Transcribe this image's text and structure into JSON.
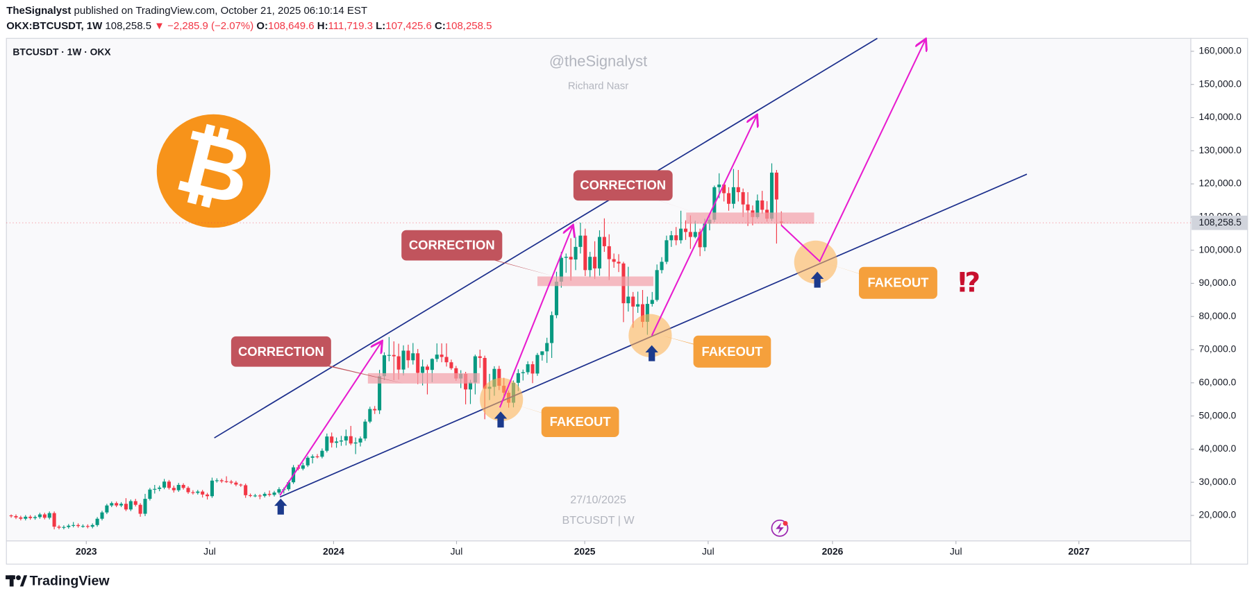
{
  "header": {
    "author": "TheSignalyst",
    "published": "published on TradingView.com, October 21, 2025 06:10:14 EST",
    "symbol": "OKX:BTCUSDT, 1W",
    "last": "108,258.5",
    "change": "−2,285.9 (−2.07%)",
    "ohlc": [
      {
        "label": "O:",
        "value": "108,649.6"
      },
      {
        "label": "H:",
        "value": "111,719.3"
      },
      {
        "label": "L:",
        "value": "107,425.6"
      },
      {
        "label": "C:",
        "value": "108,258.5"
      }
    ]
  },
  "chart_data": {
    "type": "candlestick",
    "legend": "BTCUSDT · 1W · OKX",
    "watermark": {
      "handle": "@theSignalyst",
      "name": "Richard Nasr",
      "date": "27/10/2025",
      "symbol": "BTCUSDT | W"
    },
    "colors": {
      "up": "#089981",
      "down": "#f23645"
    },
    "candles": [
      [
        20000,
        20300,
        19300,
        19800
      ],
      [
        19800,
        20300,
        18900,
        19400
      ],
      [
        19400,
        19900,
        18500,
        19000
      ],
      [
        19000,
        20100,
        18500,
        19600
      ],
      [
        19600,
        20100,
        18700,
        19200
      ],
      [
        19200,
        20000,
        18700,
        19500
      ],
      [
        19500,
        20800,
        19000,
        20300
      ],
      [
        20300,
        20800,
        18800,
        19300
      ],
      [
        19300,
        21200,
        18800,
        20700
      ],
      [
        20700,
        21200,
        15800,
        16600
      ],
      [
        16600,
        17100,
        15800,
        16300
      ],
      [
        16300,
        17000,
        15800,
        16500
      ],
      [
        16500,
        17400,
        16000,
        16900
      ],
      [
        16900,
        18000,
        16400,
        17100
      ],
      [
        17100,
        17600,
        16300,
        16800
      ],
      [
        16800,
        17300,
        16300,
        16800
      ],
      [
        16800,
        17300,
        16100,
        16600
      ],
      [
        16600,
        17600,
        16100,
        17100
      ],
      [
        17100,
        19500,
        16600,
        19000
      ],
      [
        19000,
        21400,
        18500,
        20900
      ],
      [
        20900,
        23500,
        20400,
        23000
      ],
      [
        23000,
        24200,
        22500,
        23700
      ],
      [
        23700,
        24200,
        22500,
        23000
      ],
      [
        23000,
        24000,
        22500,
        23500
      ],
      [
        23500,
        25200,
        21300,
        21800
      ],
      [
        21800,
        24800,
        21300,
        24300
      ],
      [
        24300,
        25000,
        22700,
        23200
      ],
      [
        23200,
        23700,
        19600,
        20500
      ],
      [
        20500,
        26500,
        19800,
        25000
      ],
      [
        25000,
        28300,
        24500,
        27800
      ],
      [
        27800,
        29200,
        26600,
        28000
      ],
      [
        28000,
        29000,
        27300,
        28400
      ],
      [
        28400,
        31000,
        27900,
        30200
      ],
      [
        30200,
        30700,
        27800,
        28300
      ],
      [
        28300,
        29000,
        26900,
        27600
      ],
      [
        27600,
        29800,
        27100,
        29200
      ],
      [
        29200,
        29700,
        27800,
        28300
      ],
      [
        28300,
        28800,
        26500,
        27000
      ],
      [
        27000,
        27600,
        26300,
        26800
      ],
      [
        26800,
        27700,
        26300,
        27200
      ],
      [
        27200,
        27700,
        25400,
        26300
      ],
      [
        26300,
        26800,
        24800,
        25800
      ],
      [
        25800,
        31400,
        25300,
        30500
      ],
      [
        30500,
        31200,
        29900,
        30600
      ],
      [
        30600,
        31100,
        29800,
        30300
      ],
      [
        30300,
        31800,
        29800,
        30200
      ],
      [
        30200,
        30700,
        29400,
        29900
      ],
      [
        29900,
        30400,
        28800,
        29300
      ],
      [
        29300,
        29600,
        28600,
        29100
      ],
      [
        29100,
        29600,
        25300,
        26100
      ],
      [
        26100,
        26600,
        25500,
        26000
      ],
      [
        26000,
        26500,
        25500,
        26000
      ],
      [
        26000,
        26400,
        24900,
        25900
      ],
      [
        25900,
        27000,
        25400,
        26500
      ],
      [
        26500,
        27500,
        25700,
        26200
      ],
      [
        26200,
        27400,
        25700,
        26900
      ],
      [
        26900,
        28500,
        26400,
        27900
      ],
      [
        27900,
        28400,
        26600,
        27900
      ],
      [
        27900,
        30500,
        27400,
        30000
      ],
      [
        30000,
        35200,
        29500,
        34500
      ],
      [
        34500,
        35300,
        33600,
        34100
      ],
      [
        34100,
        35900,
        33600,
        35100
      ],
      [
        35100,
        37900,
        34600,
        37400
      ],
      [
        37400,
        38400,
        35700,
        37800
      ],
      [
        37800,
        38500,
        37200,
        37700
      ],
      [
        37700,
        40200,
        37200,
        39500
      ],
      [
        39500,
        44700,
        39000,
        43800
      ],
      [
        43800,
        45000,
        40500,
        41900
      ],
      [
        41900,
        43500,
        40400,
        42300
      ],
      [
        42300,
        44000,
        41000,
        42600
      ],
      [
        42600,
        45900,
        41100,
        43900
      ],
      [
        43900,
        47000,
        41200,
        41700
      ],
      [
        41700,
        43500,
        38500,
        42000
      ],
      [
        42000,
        43800,
        40800,
        43200
      ],
      [
        43200,
        49000,
        42500,
        48300
      ],
      [
        48300,
        52800,
        47800,
        52100
      ],
      [
        52100,
        53000,
        50600,
        51700
      ],
      [
        51700,
        63900,
        50600,
        62000
      ],
      [
        62000,
        69200,
        60800,
        68300
      ],
      [
        68300,
        73800,
        66500,
        68400
      ],
      [
        68400,
        72500,
        60800,
        68000
      ],
      [
        68000,
        71800,
        61000,
        64000
      ],
      [
        64000,
        71300,
        62200,
        69700
      ],
      [
        69700,
        71500,
        64500,
        66800
      ],
      [
        66800,
        72000,
        65500,
        68900
      ],
      [
        68900,
        70200,
        59600,
        63000
      ],
      [
        63000,
        67000,
        59200,
        64900
      ],
      [
        64900,
        65500,
        56500,
        63900
      ],
      [
        63900,
        67400,
        60200,
        67200
      ],
      [
        67200,
        71900,
        66300,
        68500
      ],
      [
        68500,
        71900,
        66200,
        67800
      ],
      [
        67800,
        71900,
        64900,
        66200
      ],
      [
        66200,
        67000,
        63900,
        64400
      ],
      [
        64400,
        65100,
        60600,
        61300
      ],
      [
        61300,
        63800,
        58400,
        62700
      ],
      [
        62700,
        63300,
        53500,
        58000
      ],
      [
        58000,
        60900,
        53600,
        60100
      ],
      [
        60100,
        68500,
        56500,
        68000
      ],
      [
        68000,
        70000,
        64500,
        67500
      ],
      [
        67500,
        68200,
        49000,
        58200
      ],
      [
        58200,
        62700,
        54800,
        58800
      ],
      [
        58800,
        65000,
        56100,
        64200
      ],
      [
        64200,
        65100,
        57800,
        59100
      ],
      [
        59100,
        61500,
        56000,
        57000
      ],
      [
        57000,
        57700,
        52500,
        54000
      ],
      [
        54000,
        60700,
        52600,
        60000
      ],
      [
        60000,
        64100,
        57500,
        62900
      ],
      [
        62900,
        64000,
        60700,
        63200
      ],
      [
        63200,
        66500,
        62500,
        65600
      ],
      [
        65600,
        66500,
        59900,
        62800
      ],
      [
        62800,
        69000,
        62100,
        68400
      ],
      [
        68400,
        69500,
        66700,
        69500
      ],
      [
        69500,
        73600,
        66000,
        72000
      ],
      [
        72000,
        81500,
        67500,
        80400
      ],
      [
        80400,
        93500,
        79500,
        90500
      ],
      [
        90500,
        99500,
        88700,
        97700
      ],
      [
        97700,
        99000,
        93200,
        98000
      ],
      [
        98000,
        103600,
        90800,
        97200
      ],
      [
        97200,
        104000,
        94000,
        101000
      ],
      [
        101000,
        108300,
        99000,
        104400
      ],
      [
        104400,
        106500,
        92200,
        94000
      ],
      [
        94000,
        99500,
        91800,
        98000
      ],
      [
        98000,
        102700,
        91300,
        94500
      ],
      [
        94500,
        106000,
        92300,
        104000
      ],
      [
        104000,
        109600,
        99500,
        101200
      ],
      [
        101200,
        104800,
        91000,
        97300
      ],
      [
        97300,
        99000,
        94700,
        96500
      ],
      [
        96500,
        98800,
        93400,
        96000
      ],
      [
        96000,
        96500,
        78300,
        84000
      ],
      [
        84000,
        95000,
        81500,
        86000
      ],
      [
        86000,
        87400,
        76600,
        83000
      ],
      [
        83000,
        87500,
        81100,
        83700
      ],
      [
        83700,
        88000,
        76700,
        78400
      ],
      [
        78400,
        86000,
        74500,
        83800
      ],
      [
        83800,
        87400,
        83000,
        85000
      ],
      [
        85000,
        95700,
        84500,
        94000
      ],
      [
        94000,
        97900,
        93000,
        96500
      ],
      [
        96500,
        104400,
        95800,
        103000
      ],
      [
        103000,
        105800,
        101000,
        104500
      ],
      [
        104500,
        107000,
        101500,
        103000
      ],
      [
        103000,
        111900,
        102000,
        106500
      ],
      [
        106500,
        109000,
        103100,
        105500
      ],
      [
        105500,
        110500,
        100400,
        104000
      ],
      [
        104000,
        108900,
        103600,
        105500
      ],
      [
        105500,
        106500,
        98200,
        100900
      ],
      [
        100900,
        109500,
        99700,
        108000
      ],
      [
        108000,
        110500,
        106000,
        109200
      ],
      [
        109200,
        119500,
        108500,
        119000
      ],
      [
        119000,
        123200,
        115700,
        119800
      ],
      [
        119800,
        120200,
        114700,
        117200
      ],
      [
        117200,
        119000,
        111900,
        114000
      ],
      [
        114000,
        124500,
        112600,
        119000
      ],
      [
        119000,
        124200,
        114700,
        117500
      ],
      [
        117500,
        118600,
        110000,
        113800
      ],
      [
        113800,
        117500,
        107300,
        112000
      ],
      [
        112000,
        113500,
        107500,
        110000
      ],
      [
        110000,
        116800,
        109500,
        115000
      ],
      [
        115000,
        117900,
        111000,
        112200
      ],
      [
        112200,
        114800,
        108600,
        109500
      ],
      [
        109500,
        126200,
        108800,
        123400
      ],
      [
        123400,
        124200,
        102000,
        115300
      ],
      [
        108649.6,
        111719.3,
        107425.6,
        108258.5
      ]
    ],
    "xlim": [
      -1,
      246.6
    ],
    "xticks": [
      {
        "value": 15.7,
        "label": "2023"
      },
      {
        "value": 41.5,
        "label": "Jul"
      },
      {
        "value": 67.4,
        "label": "2024"
      },
      {
        "value": 93.1,
        "label": "Jul"
      },
      {
        "value": 119.9,
        "label": "2025"
      },
      {
        "value": 145.7,
        "label": "Jul"
      },
      {
        "value": 171.7,
        "label": "2026"
      },
      {
        "value": 197.5,
        "label": "Jul"
      },
      {
        "value": 223.2,
        "label": "2027"
      }
    ],
    "ylim": [
      12300,
      163900
    ],
    "yticks": [
      {
        "value": 20000,
        "label": "20,000.0"
      },
      {
        "value": 30000,
        "label": "30,000.0"
      },
      {
        "value": 40000,
        "label": "40,000.0"
      },
      {
        "value": 50000,
        "label": "50,000.0"
      },
      {
        "value": 60000,
        "label": "60,000.0"
      },
      {
        "value": 70000,
        "label": "70,000.0"
      },
      {
        "value": 80000,
        "label": "80,000.0"
      },
      {
        "value": 90000,
        "label": "90,000.0"
      },
      {
        "value": 100000,
        "label": "100,000.0"
      },
      {
        "value": 110000,
        "label": "110,000.0"
      },
      {
        "value": 120000,
        "label": "120,000.0"
      },
      {
        "value": 130000,
        "label": "130,000.0"
      },
      {
        "value": 140000,
        "label": "140,000.0"
      },
      {
        "value": 150000,
        "label": "150,000.0"
      },
      {
        "value": 160000,
        "label": "160,000.0"
      }
    ],
    "annotations": {
      "corrections": [
        "CORRECTION",
        "CORRECTION",
        "CORRECTION"
      ],
      "fakeouts": [
        "FAKEOUT",
        "FAKEOUT",
        "FAKEOUT"
      ],
      "question": "⁉",
      "icon": "₿"
    }
  },
  "footer": {
    "brand": "TradingView"
  }
}
